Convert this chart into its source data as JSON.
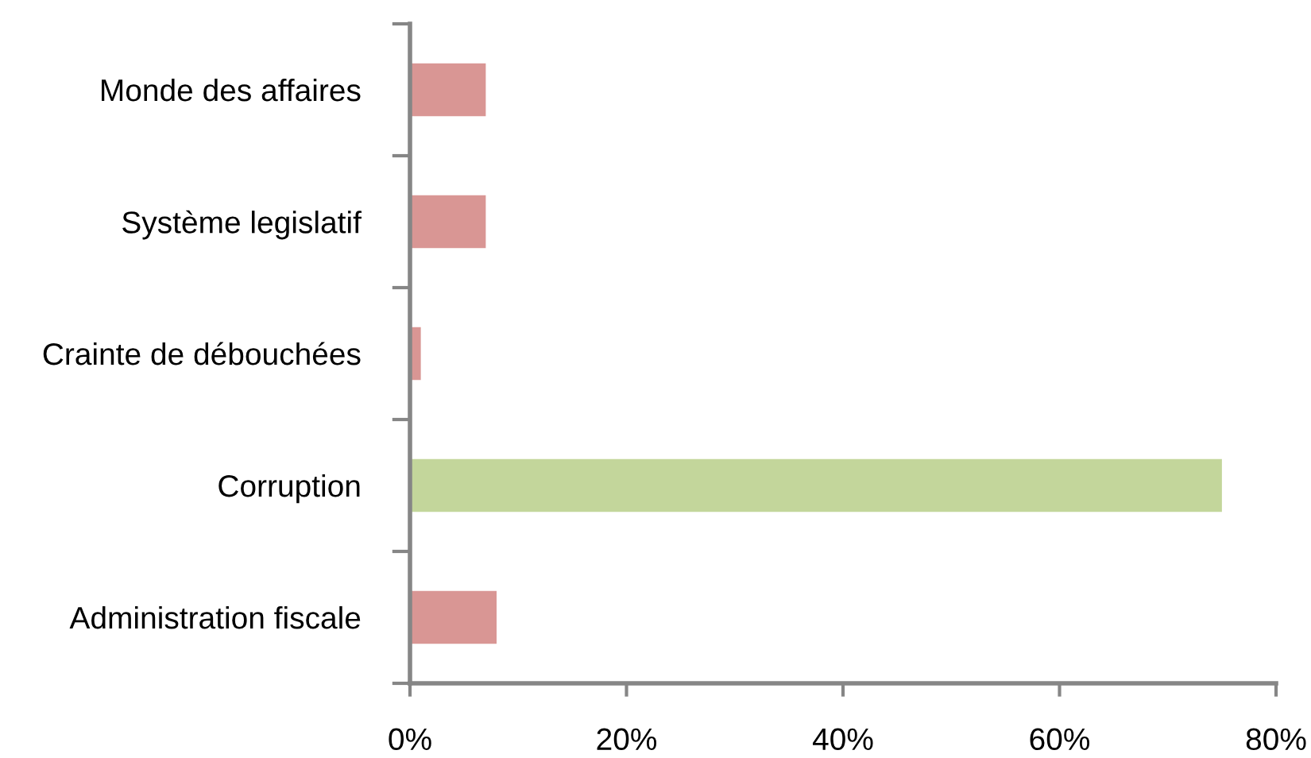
{
  "chart_data": {
    "type": "bar",
    "orientation": "horizontal",
    "categories": [
      "Monde des affaires",
      "Système legislatif",
      "Crainte de débouchées",
      "Corruption",
      "Administration fiscale"
    ],
    "values": [
      7,
      7,
      1,
      75,
      8
    ],
    "colors": [
      "#d99694",
      "#d99694",
      "#d99694",
      "#c3d69b",
      "#d99694"
    ],
    "xlim": [
      0,
      80
    ],
    "xticks": [
      {
        "value": 0,
        "label": "0%"
      },
      {
        "value": 20,
        "label": "20%"
      },
      {
        "value": 40,
        "label": "40%"
      },
      {
        "value": 60,
        "label": "60%"
      },
      {
        "value": 80,
        "label": "80%"
      }
    ]
  }
}
